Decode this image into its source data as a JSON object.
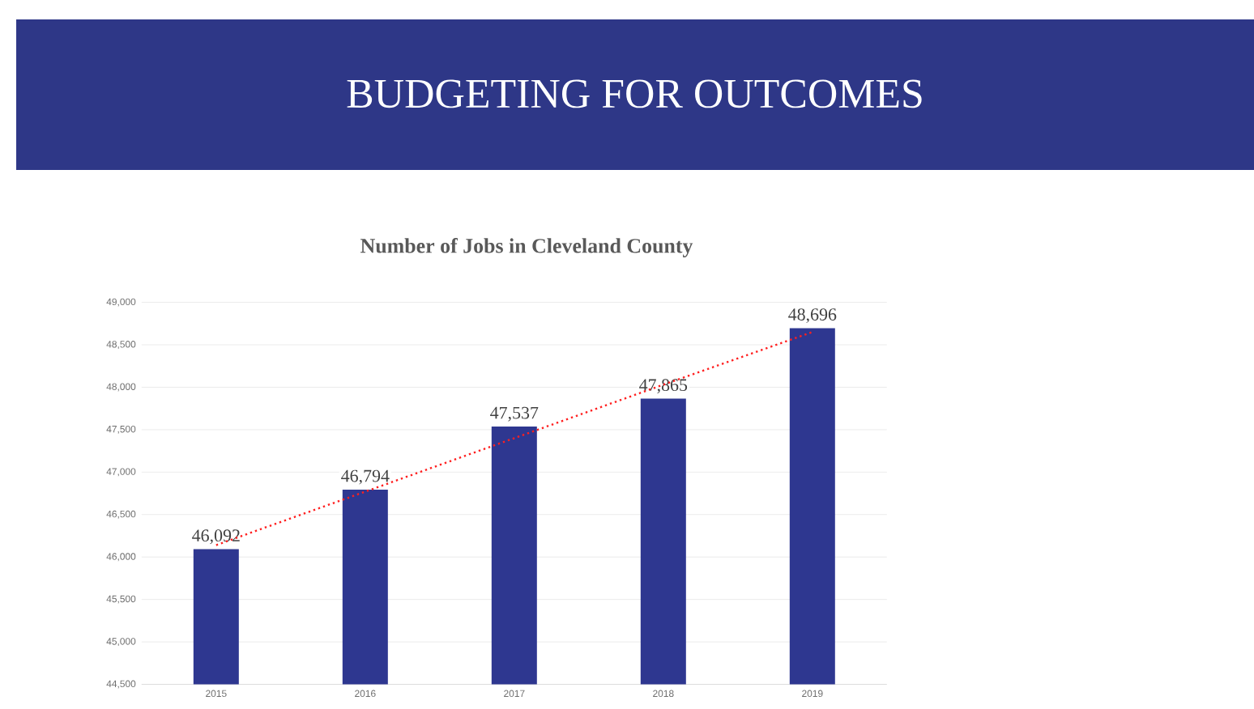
{
  "chart_data": {
    "type": "bar",
    "title": "BUDGETING FOR OUTCOMES",
    "subtitle": "Number of Jobs in Cleveland County",
    "categories": [
      "2015",
      "2016",
      "2017",
      "2018",
      "2019"
    ],
    "series": [
      {
        "color": "#2e3790",
        "values": [
          46092,
          46794,
          47537,
          47865,
          48696
        ],
        "value_labels": [
          "46,092",
          "46,794",
          "47,537",
          "47,865",
          "48,696"
        ]
      },
      {
        "type": "line",
        "color": "#ff2020",
        "line_style": "dotted",
        "marker": "none",
        "values": [
          46140,
          46770,
          47400,
          48030,
          48650
        ]
      }
    ],
    "ylim": [
      44500,
      49000
    ],
    "yticks": [
      {
        "value": 44500,
        "label": "44,500"
      },
      {
        "value": 45000,
        "label": "45,000"
      },
      {
        "value": 45500,
        "label": "45,500"
      },
      {
        "value": 46000,
        "label": "46,000"
      },
      {
        "value": 46500,
        "label": "46,500"
      },
      {
        "value": 47000,
        "label": "47,000"
      },
      {
        "value": 47500,
        "label": "47,500"
      },
      {
        "value": 48000,
        "label": "48,000"
      },
      {
        "value": 48500,
        "label": "48,500"
      },
      {
        "value": 49000,
        "label": "49,000"
      }
    ],
    "grid": "y"
  }
}
